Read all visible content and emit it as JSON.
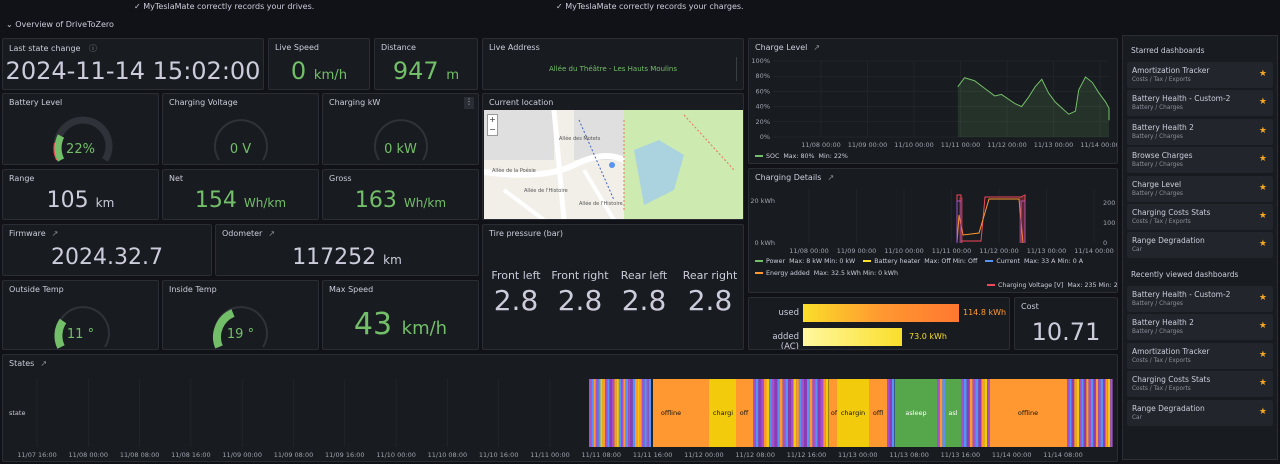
{
  "banner": {
    "drives": "✓ MyTeslaMate correctly records your drives.",
    "charges": "✓ MyTeslaMate correctly records your charges."
  },
  "row_title": "⌄ Overview of DriveToZero",
  "last_state": {
    "title": "Last state change",
    "value": "2024-11-14 15:02:00"
  },
  "live_speed": {
    "title": "Live Speed",
    "value": "0",
    "unit": "km/h"
  },
  "distance": {
    "title": "Distance",
    "value": "947",
    "unit": "m"
  },
  "live_address": {
    "title": "Live Address",
    "value": "Allée du Théâtre - Les Hauts Moulins"
  },
  "battery_level": {
    "title": "Battery Level",
    "value": "22%",
    "level": 0.22
  },
  "charging_voltage": {
    "title": "Charging Voltage",
    "value": "0 V",
    "level": 0
  },
  "charging_kw": {
    "title": "Charging kW",
    "value": "0 kW",
    "level": 0
  },
  "current_location": {
    "title": "Current location",
    "zoom_in": "+",
    "zoom_out": "−",
    "streets": [
      "Allée de la Poésie",
      "Allée de l'Histoire",
      "Allée des Motets",
      "Allée de l'Histoire"
    ]
  },
  "range": {
    "title": "Range",
    "value": "105",
    "unit": "km"
  },
  "net": {
    "title": "Net",
    "value": "154",
    "unit": "Wh/km"
  },
  "gross": {
    "title": "Gross",
    "value": "163",
    "unit": "Wh/km"
  },
  "firmware": {
    "title": "Firmware",
    "value": "2024.32.7"
  },
  "odometer": {
    "title": "Odometer",
    "value": "117252",
    "unit": "km"
  },
  "tire_pressure": {
    "title": "Tire pressure (bar)",
    "items": [
      {
        "label": "Front left",
        "value": "2.8"
      },
      {
        "label": "Front right",
        "value": "2.8"
      },
      {
        "label": "Rear left",
        "value": "2.8"
      },
      {
        "label": "Rear right",
        "value": "2.8"
      }
    ]
  },
  "outside_temp": {
    "title": "Outside Temp",
    "value": "11 °",
    "level": 0.3
  },
  "inside_temp": {
    "title": "Inside Temp",
    "value": "19 °",
    "level": 0.45
  },
  "max_speed": {
    "title": "Max Speed",
    "value": "43",
    "unit": "km/h"
  },
  "charge_level": {
    "title": "Charge Level",
    "link_icon": "external-link-icon",
    "yticks": [
      "100%",
      "80%",
      "60%",
      "40%",
      "20%",
      "0%"
    ],
    "xticks": [
      "11/08 00:00",
      "11/09 00:00",
      "11/10 00:00",
      "11/11 00:00",
      "11/12 00:00",
      "11/13 00:00",
      "11/14 00:00"
    ],
    "legend": {
      "name": "SOC",
      "max": "Max: 80%",
      "min": "Min: 22%"
    }
  },
  "charging_details": {
    "title": "Charging Details",
    "yticks_left": [
      "20 kWh",
      "0 kWh"
    ],
    "yticks_right": [
      "200",
      "100",
      "0"
    ],
    "xticks": [
      "11/08 00:00",
      "11/09 00:00",
      "11/10 00:00",
      "11/11 00:00",
      "11/12 00:00",
      "11/13 00:00",
      "11/14 00:00"
    ],
    "legend": [
      {
        "name": "Power",
        "stats": "Max: 8 kW   Min: 0 kW",
        "color": "#73bf69"
      },
      {
        "name": "Battery heater",
        "stats": "Max: Off   Min: Off",
        "color": "#fade2a"
      },
      {
        "name": "Current",
        "stats": "Max: 33 A   Min: 0 A",
        "color": "#5794f2"
      },
      {
        "name": "Energy added",
        "stats": "Max: 32.5 kWh   Min: 0 kWh",
        "color": "#ff9830"
      },
      {
        "name": "Charging Voltage [V]",
        "stats": "Max: 235   Min: 2",
        "color": "#f2495c"
      }
    ]
  },
  "energy": {
    "used_label": "used",
    "used_value": "114.8 kWh",
    "used_frac": 1.0,
    "added_label": "added (AC)",
    "added_value": "73.0 kWh",
    "added_frac": 0.636
  },
  "cost": {
    "title": "Cost",
    "value": "10.71"
  },
  "states": {
    "title": "States",
    "row_label": "state",
    "xticks": [
      "11/07 16:00",
      "11/08 00:00",
      "11/08 08:00",
      "11/08 16:00",
      "11/09 00:00",
      "11/09 08:00",
      "11/09 16:00",
      "11/10 00:00",
      "11/10 08:00",
      "11/10 16:00",
      "11/11 00:00",
      "11/11 08:00",
      "11/11 16:00",
      "11/12 00:00",
      "11/12 08:00",
      "11/12 16:00",
      "11/13 00:00",
      "11/13 08:00",
      "11/13 16:00",
      "11/14 00:00",
      "11/14 08:00"
    ],
    "labels": [
      "offline",
      "chargi",
      "off",
      "of",
      "chargin",
      "offl",
      "asleep",
      "asl",
      "offline"
    ]
  },
  "starred": {
    "title": "Starred dashboards",
    "items": [
      {
        "title": "Amortization Tracker",
        "tags": "Costs / Tax / Exports"
      },
      {
        "title": "Battery Health - Custom-2",
        "tags": "Battery / Charges"
      },
      {
        "title": "Battery Health 2",
        "tags": "Battery / Charges"
      },
      {
        "title": "Browse Charges",
        "tags": "Battery / Charges"
      },
      {
        "title": "Charge Level",
        "tags": "Battery / Charges"
      },
      {
        "title": "Charging Costs Stats",
        "tags": "Costs / Tax / Exports"
      },
      {
        "title": "Range Degradation",
        "tags": "Car"
      }
    ]
  },
  "recent": {
    "title": "Recently viewed dashboards",
    "items": [
      {
        "title": "Battery Health - Custom-2",
        "tags": "Battery / Charges"
      },
      {
        "title": "Battery Health 2",
        "tags": "Battery / Charges"
      },
      {
        "title": "Amortization Tracker",
        "tags": "Costs / Tax / Exports"
      },
      {
        "title": "Charging Costs Stats",
        "tags": "Costs / Tax / Exports"
      },
      {
        "title": "Range Degradation",
        "tags": "Car"
      }
    ]
  },
  "colors": {
    "green": "#73bf69",
    "orange": "#ff9830",
    "yellow": "#fade2a",
    "red": "#f2495c",
    "purple": "#a352cc",
    "blue": "#5794f2",
    "panel": "#181b1f"
  }
}
